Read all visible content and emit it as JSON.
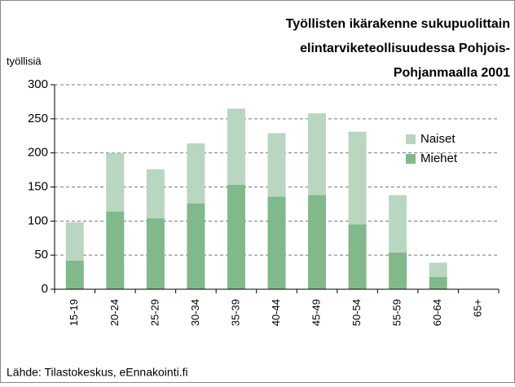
{
  "chart_data": {
    "type": "stacked_bar",
    "title": [
      "Työllisten ikärakenne sukupuolittain",
      "elintarviketeollisuudessa Pohjois-",
      "Pohjanmaalla 2001"
    ],
    "y_label": "työllisiä",
    "source": "Lähde: Tilastokeskus, eEnnakointi.fi",
    "categories": [
      "15-19",
      "20-24",
      "25-29",
      "30-34",
      "35-39",
      "40-44",
      "45-49",
      "50-54",
      "55-59",
      "60-64",
      "65+"
    ],
    "series": [
      {
        "name": "Miehet",
        "color": "#80b98a",
        "values": [
          42,
          114,
          104,
          126,
          153,
          136,
          138,
          95,
          54,
          18,
          0
        ]
      },
      {
        "name": "Naiset",
        "color": "#b9d6c0",
        "values": [
          56,
          86,
          72,
          88,
          112,
          93,
          120,
          136,
          84,
          21,
          0
        ]
      }
    ],
    "ylim": [
      0,
      300
    ],
    "yticks": [
      0,
      50,
      100,
      150,
      200,
      250,
      300
    ],
    "grid": true,
    "legend": "right"
  }
}
